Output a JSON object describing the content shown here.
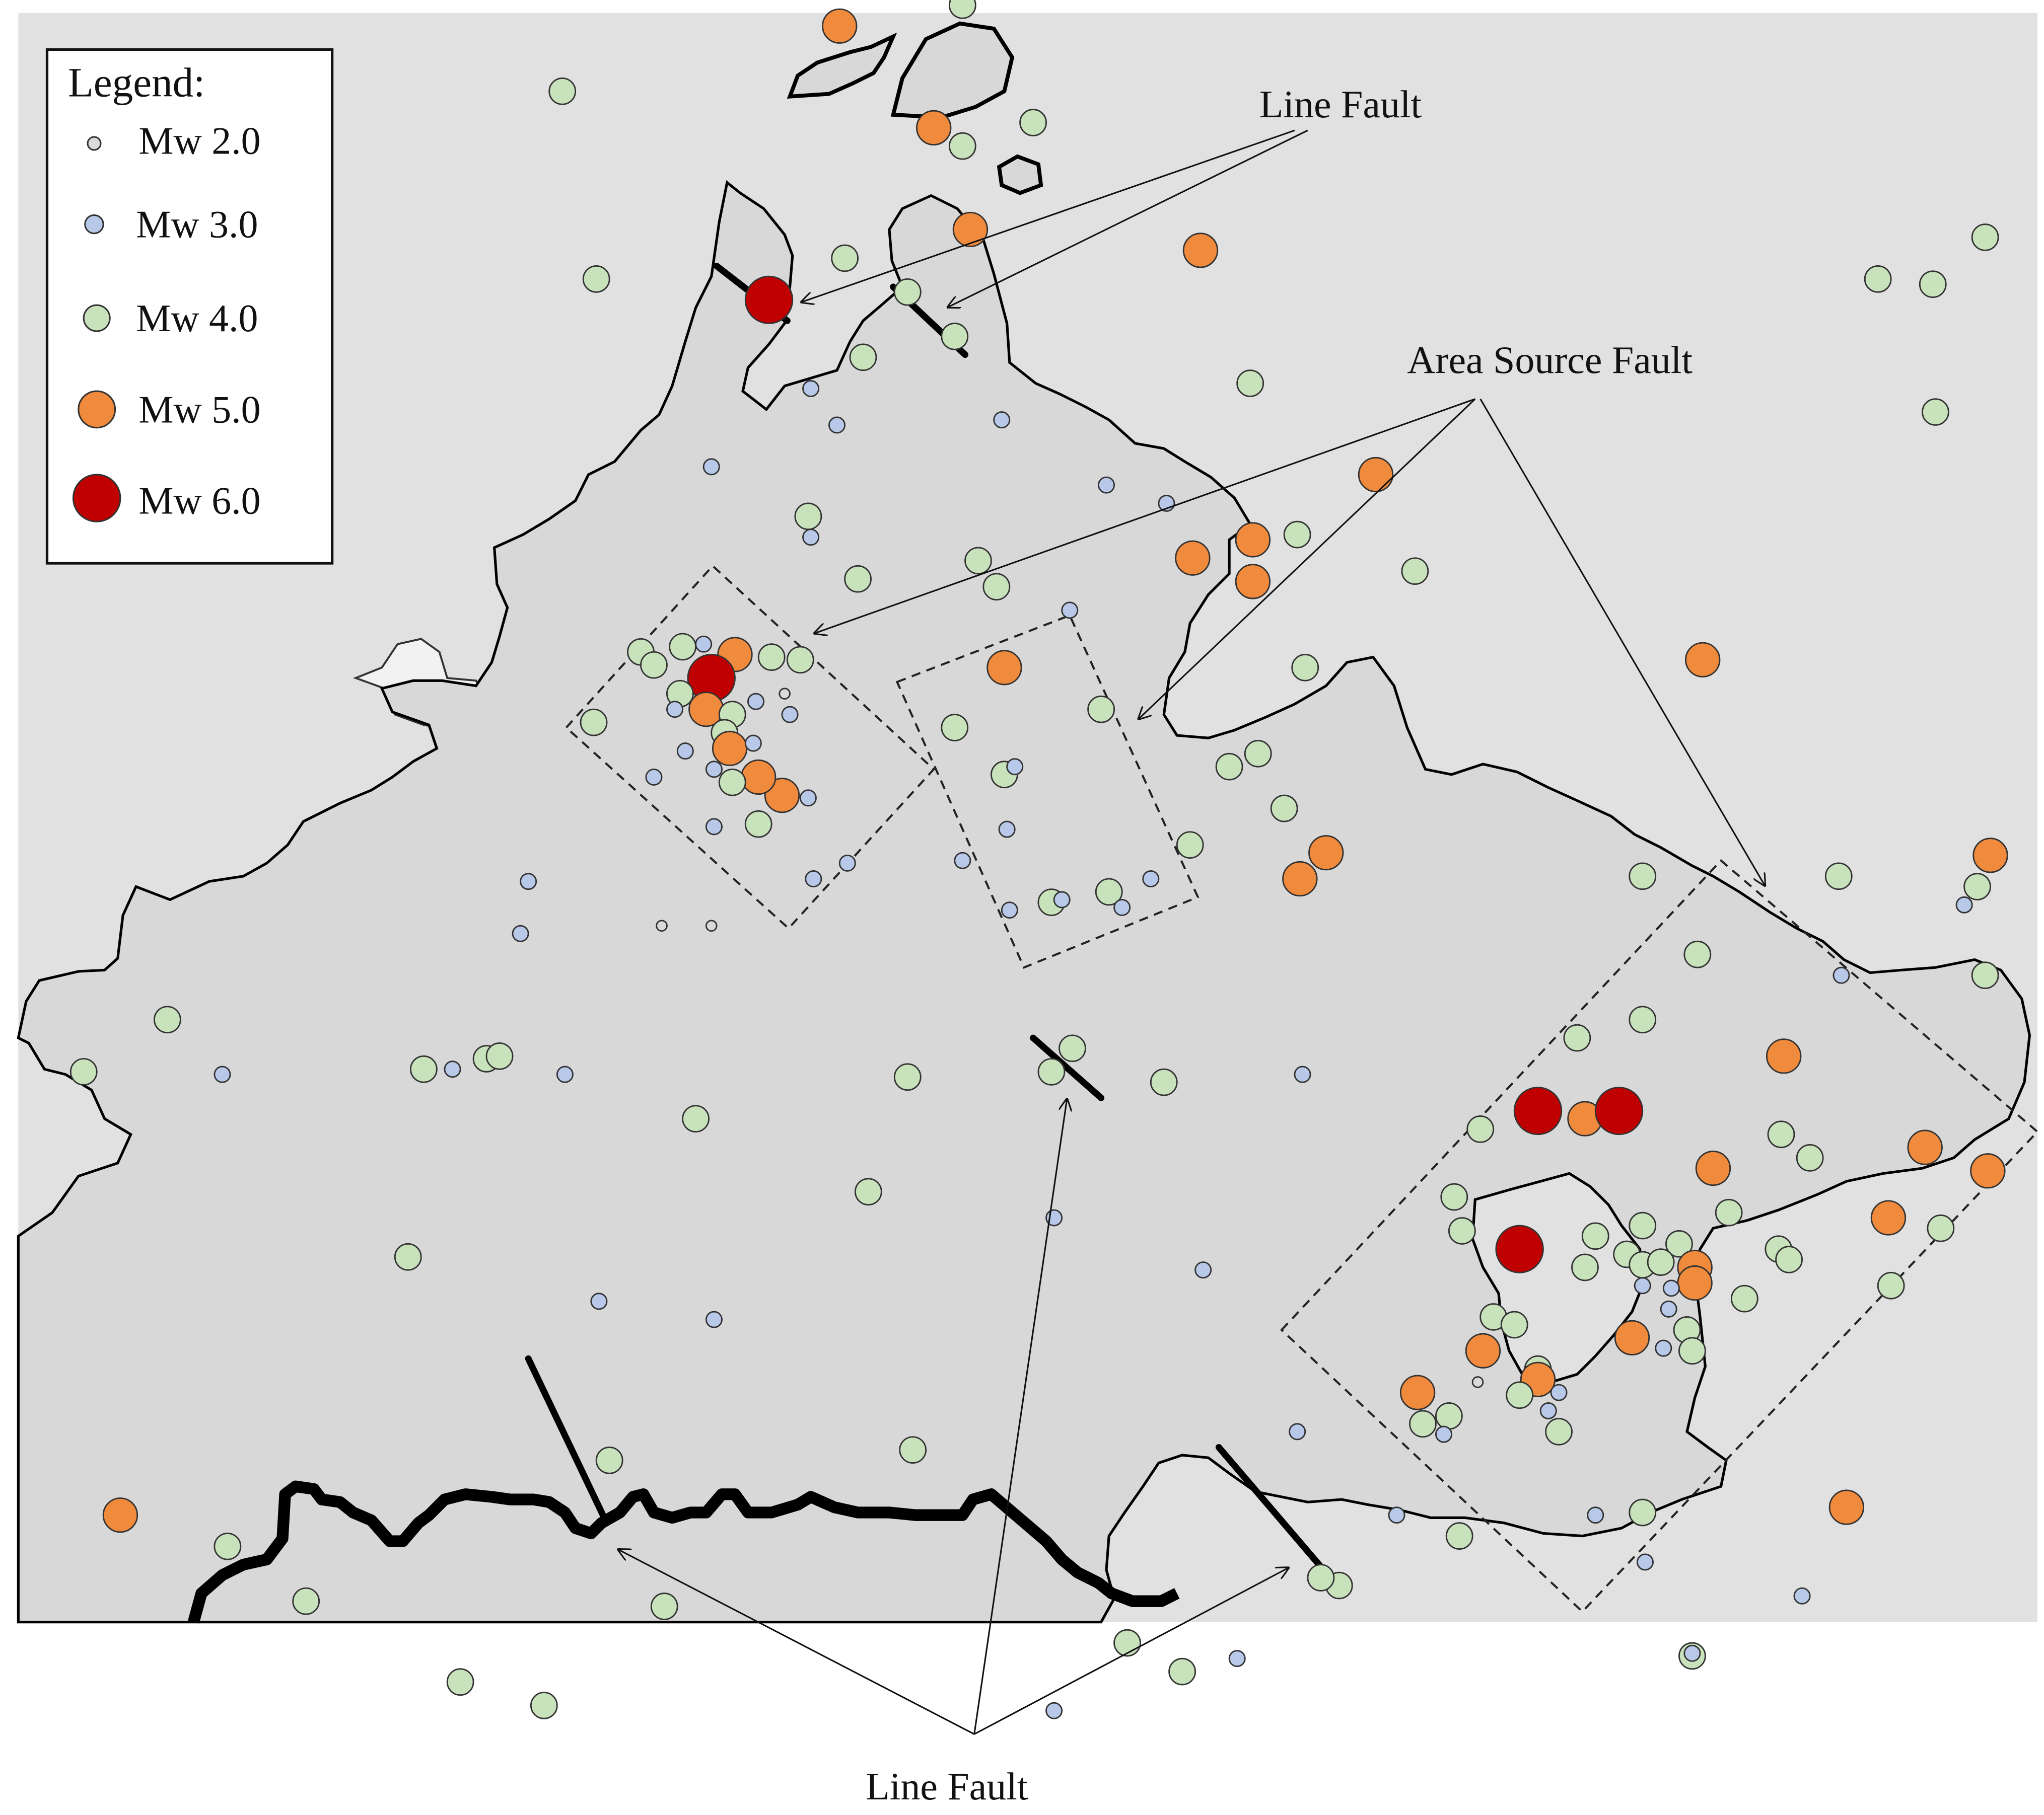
{
  "legend": {
    "title": "Legend:",
    "items": [
      {
        "label": "Mw 2.0",
        "class": "mw2"
      },
      {
        "label": "Mw 3.0",
        "class": "mw3"
      },
      {
        "label": "Mw 4.0",
        "class": "mw4"
      },
      {
        "label": "Mw 5.0",
        "class": "mw5"
      },
      {
        "label": "Mw 6.0",
        "class": "mw6"
      }
    ]
  },
  "annotations": {
    "line_fault_top": "Line Fault",
    "area_source_fault": "Area Source Fault",
    "line_fault_bottom": "Line Fault"
  },
  "colors": {
    "background": "#e1e1e1",
    "land": "#d8d8d8",
    "mw2": "#dadada",
    "mw3": "#b8c8e8",
    "mw4": "#c8e2bc",
    "mw5": "#f08a3c",
    "mw6": "#c00000"
  }
}
